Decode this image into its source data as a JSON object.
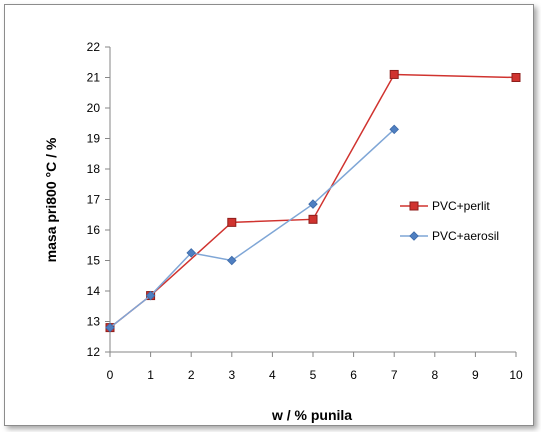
{
  "chart_data": {
    "type": "line",
    "title": "",
    "xlabel": "w / % punila",
    "ylabel": "masa pri800 °C / %",
    "categories": [
      "0",
      "1",
      "2",
      "3",
      "4",
      "5",
      "6",
      "7",
      "8",
      "9",
      "10"
    ],
    "ylim": [
      12,
      22
    ],
    "yticks": [
      "12",
      "13",
      "14",
      "15",
      "16",
      "17",
      "18",
      "19",
      "20",
      "21",
      "22"
    ],
    "grid": false,
    "legend_position": "right",
    "series": [
      {
        "name": "PVC+perlit",
        "color": "#d0332f",
        "marker": "square",
        "points": [
          {
            "x": "0",
            "y": 12.8
          },
          {
            "x": "1",
            "y": 13.85
          },
          {
            "x": "3",
            "y": 16.25
          },
          {
            "x": "5",
            "y": 16.35
          },
          {
            "x": "7",
            "y": 21.1
          },
          {
            "x": "10",
            "y": 21.0
          }
        ]
      },
      {
        "name": "PVC+aerosil",
        "color": "#7fa6d6",
        "marker": "diamond",
        "points": [
          {
            "x": "0",
            "y": 12.8
          },
          {
            "x": "1",
            "y": 13.85
          },
          {
            "x": "2",
            "y": 15.25
          },
          {
            "x": "3",
            "y": 15.0
          },
          {
            "x": "5",
            "y": 16.85
          },
          {
            "x": "7",
            "y": 19.3
          }
        ]
      }
    ]
  }
}
